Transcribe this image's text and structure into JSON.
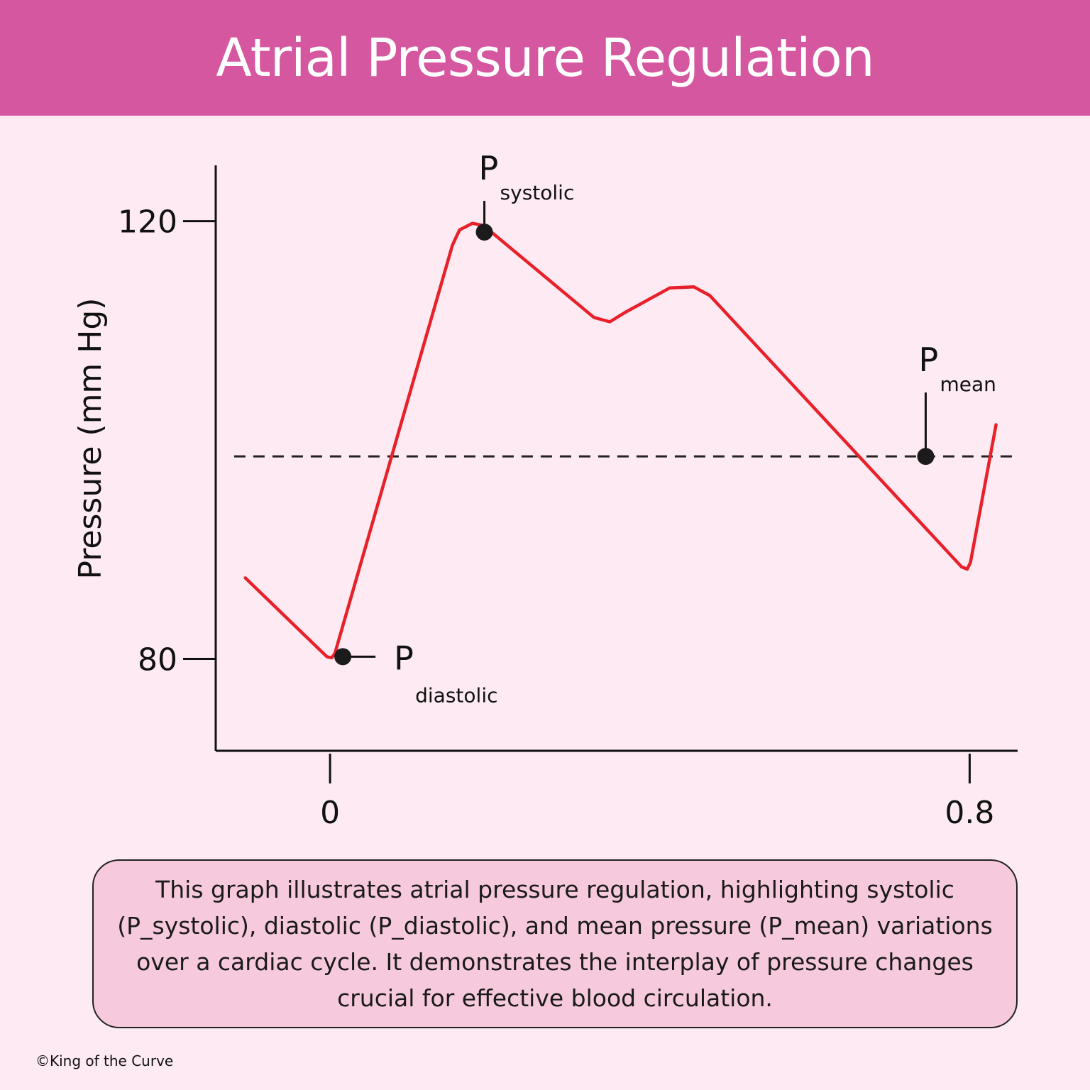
{
  "header": {
    "title": "Atrial Pressure Regulation"
  },
  "caption": {
    "text": "This graph illustrates atrial pressure regulation, highlighting systolic (P_systolic), diastolic (P_diastolic), and mean pressure (P_mean) variations over a cardiac cycle. It demonstrates the interplay of pressure changes crucial for effective blood circulation."
  },
  "footer": {
    "copyright": "©King of the Curve"
  },
  "colors": {
    "curve": "#e8202a",
    "header": "#d5579f",
    "background": "#fdeaf2",
    "caption_box": "#f6c9dd"
  },
  "chart_data": {
    "type": "line",
    "title": "",
    "xlabel": "",
    "ylabel": "Pressure (mm Hg)",
    "x_ticks": [
      {
        "value": 0,
        "label": "0"
      },
      {
        "value": 0.8,
        "label": "0.8"
      }
    ],
    "y_ticks": [
      {
        "value": 80,
        "label": "80"
      },
      {
        "value": 120,
        "label": "120"
      }
    ],
    "xlim": [
      -0.143,
      0.86
    ],
    "ylim": [
      71.6,
      125.1
    ],
    "grid": false,
    "legend": "none",
    "series": [
      {
        "values": [
          [
            -0.106,
            87.4
          ],
          [
            -0.004,
            80.2
          ],
          [
            0.002,
            80.1
          ],
          [
            0.006,
            80.5
          ],
          [
            0.153,
            117.8
          ],
          [
            0.162,
            119.2
          ],
          [
            0.178,
            119.8
          ],
          [
            0.192,
            119.6
          ],
          [
            0.33,
            111.2
          ],
          [
            0.35,
            110.8
          ],
          [
            0.37,
            111.7
          ],
          [
            0.425,
            113.9
          ],
          [
            0.455,
            114.0
          ],
          [
            0.475,
            113.2
          ],
          [
            0.79,
            88.4
          ],
          [
            0.797,
            88.2
          ],
          [
            0.801,
            88.8
          ],
          [
            0.833,
            101.4
          ]
        ]
      }
    ],
    "reference_lines": [
      {
        "axis": "y",
        "value": 98.5,
        "style": "dashed"
      }
    ],
    "annotations": [
      {
        "id": "systolic",
        "label_main": "P",
        "label_sub": "systolic",
        "x": 0.193,
        "y": 119.0
      },
      {
        "id": "diastolic",
        "label_main": "P",
        "label_sub": "diastolic",
        "x": 0.016,
        "y": 80.2
      },
      {
        "id": "mean",
        "label_main": "P",
        "label_sub": "mean",
        "x": 0.745,
        "y": 98.5
      }
    ]
  }
}
